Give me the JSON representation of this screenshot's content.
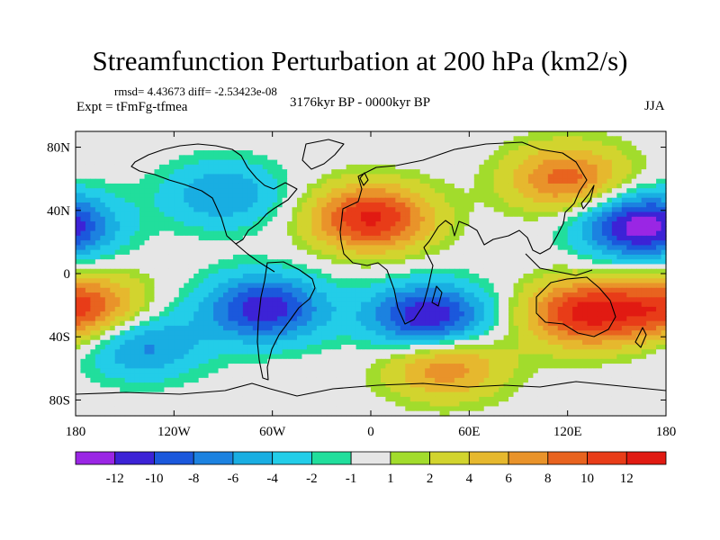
{
  "header": {
    "title": "Streamfunction Perturbation at 200 hPa (km2/s)",
    "stats": "rmsd= 4.43673 diff= -2.53423e-08",
    "experiment": "Expt = tFmFg-tfmea",
    "period": "3176kyr BP - 0000kyr BP",
    "season": "JJA"
  },
  "chart_data": {
    "type": "heatmap",
    "title": "Streamfunction Perturbation at 200 hPa (km2/s)",
    "subtitle": "3176kyr BP - 0000kyr BP",
    "season": "JJA",
    "projection": "cylindrical equidistant",
    "xlim": [
      -180,
      180
    ],
    "ylim": [
      -90,
      90
    ],
    "x_ticks": [
      {
        "lon": -180,
        "label": "180"
      },
      {
        "lon": -120,
        "label": "120W"
      },
      {
        "lon": -60,
        "label": "60W"
      },
      {
        "lon": 0,
        "label": "0"
      },
      {
        "lon": 60,
        "label": "60E"
      },
      {
        "lon": 120,
        "label": "120E"
      },
      {
        "lon": 180,
        "label": "180"
      }
    ],
    "y_ticks": [
      {
        "lat": 80,
        "label": "80N"
      },
      {
        "lat": 40,
        "label": "40N"
      },
      {
        "lat": 0,
        "label": "0"
      },
      {
        "lat": -40,
        "label": "40S"
      },
      {
        "lat": -80,
        "label": "80S"
      }
    ],
    "colorbar": {
      "labels": [
        "-12",
        "-10",
        "-8",
        "-6",
        "-4",
        "-2",
        "-1",
        "1",
        "2",
        "4",
        "6",
        "8",
        "10",
        "12"
      ],
      "levels": [
        -12,
        -10,
        -8,
        -6,
        -4,
        -2,
        -1,
        1,
        2,
        4,
        6,
        8,
        10,
        12
      ],
      "colors": [
        "#9a26e4",
        "#3c23d6",
        "#1b58dc",
        "#1c82e0",
        "#19aee2",
        "#23cde8",
        "#21de9c",
        "#e6e6e6",
        "#a2dc2c",
        "#d2d42e",
        "#e6b82e",
        "#e9932a",
        "#e8631f",
        "#e83c18",
        "#e11a12"
      ]
    },
    "anomalies": [
      {
        "lon": 165,
        "lat": 30,
        "value": -13.5,
        "note": "NW Pacific low"
      },
      {
        "lon": 35,
        "lat": -28,
        "value": -12.5,
        "note": "southern Africa low"
      },
      {
        "lon": -65,
        "lat": -22,
        "value": -11.5,
        "note": "South America low"
      },
      {
        "lon": -140,
        "lat": -45,
        "value": -7,
        "note": "South Pacific low"
      },
      {
        "lon": 0,
        "lat": 35,
        "value": 12.5,
        "note": "North Africa / Mediterranean high"
      },
      {
        "lon": 130,
        "lat": -25,
        "value": 12,
        "note": "Australia high"
      },
      {
        "lon": -175,
        "lat": -22,
        "value": 10.5,
        "note": "SW Pacific high"
      },
      {
        "lon": 120,
        "lat": 60,
        "value": 9,
        "note": "Siberia high"
      },
      {
        "lon": 45,
        "lat": -58,
        "value": 8,
        "note": "Southern Ocean high"
      },
      {
        "lon": -90,
        "lat": 50,
        "value": -6,
        "note": "North America low"
      }
    ]
  }
}
